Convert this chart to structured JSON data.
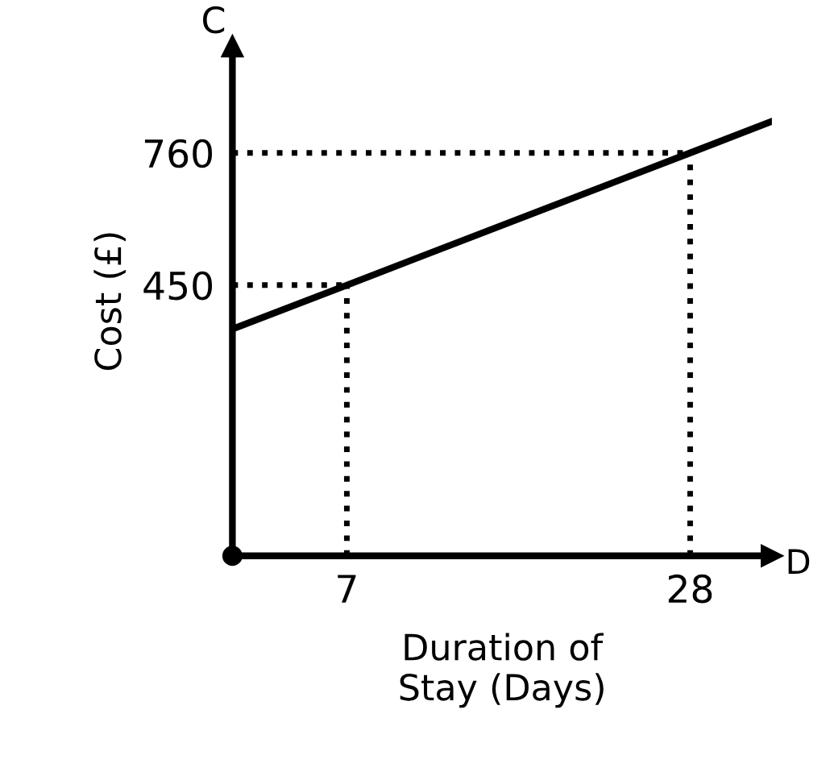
{
  "chart_data": {
    "type": "line",
    "xlabel": "Duration of\nStay (Days)",
    "ylabel": "Cost (£)",
    "annotations": [
      "C",
      "D"
    ],
    "x": [
      0,
      7,
      28,
      33
    ],
    "series": [
      {
        "color": "#000000",
        "values": [
          347,
          450,
          760,
          834
        ]
      }
    ],
    "xlim": [
      0,
      33
    ],
    "ylim": [
      -185,
      1010
    ],
    "xticks": [
      7,
      28
    ],
    "yticks": [
      450,
      760
    ],
    "ref_lines": [
      {
        "axis": "y",
        "value": 450,
        "line_style": "dotted",
        "color": "#000000"
      },
      {
        "axis": "y",
        "value": 760,
        "line_style": "dotted",
        "color": "#000000"
      },
      {
        "axis": "x",
        "value": 7,
        "line_style": "dotted",
        "color": "#000000"
      },
      {
        "axis": "x",
        "value": 28,
        "line_style": "dotted",
        "color": "#000000"
      }
    ],
    "grid": false,
    "legend": false,
    "marker": "none",
    "line_style": "solid"
  }
}
